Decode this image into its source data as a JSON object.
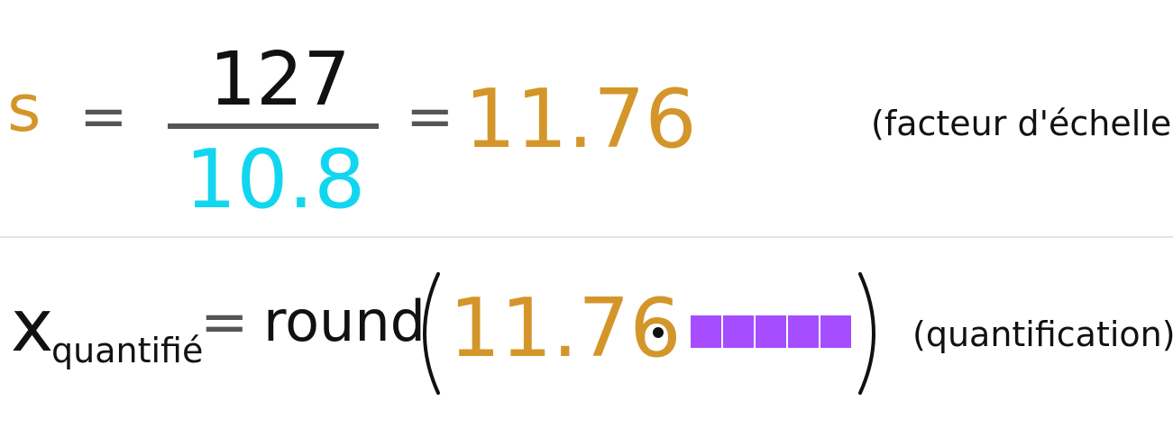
{
  "scale_equation": {
    "variable": "s",
    "equals_1": "=",
    "numerator": "127",
    "denominator": "10.8",
    "equals_2": "=",
    "result": "11.76",
    "note": "(facteur d'échelle)"
  },
  "quantize_equation": {
    "variable": "x",
    "subscript": "quantifié",
    "equals": "=",
    "function_name": "round",
    "scale_value": "11.76",
    "operator": "·",
    "input_blocks": 5,
    "note": "(quantification)"
  },
  "colors": {
    "scale": "#d4962a",
    "operator": "#555555",
    "denominator": "#12d6f0",
    "input": "#a64dff",
    "text": "#111111"
  }
}
